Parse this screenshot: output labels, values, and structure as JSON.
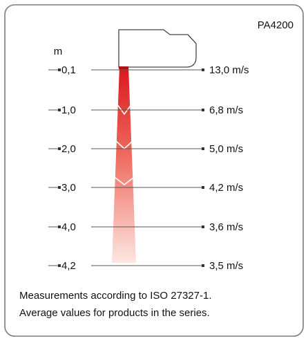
{
  "product": "PA4200",
  "unit": "m",
  "rows": [
    {
      "distance": "0,1",
      "speed": "13,0 m/s"
    },
    {
      "distance": "1,0",
      "speed": "6,8 m/s"
    },
    {
      "distance": "2,0",
      "speed": "5,0 m/s"
    },
    {
      "distance": "3,0",
      "speed": "4,2 m/s"
    },
    {
      "distance": "4,0",
      "speed": "3,6 m/s"
    },
    {
      "distance": "4,2",
      "speed": "3,5 m/s"
    }
  ],
  "footer": {
    "line1": "Measurements according to ISO 27327-1.",
    "line2": "Average values for products in the series."
  },
  "colors": {
    "jet_top": "#d9171f",
    "jet_bottom": "#fde6e1",
    "frame": "#7a7a7a",
    "lines": "#555555"
  }
}
